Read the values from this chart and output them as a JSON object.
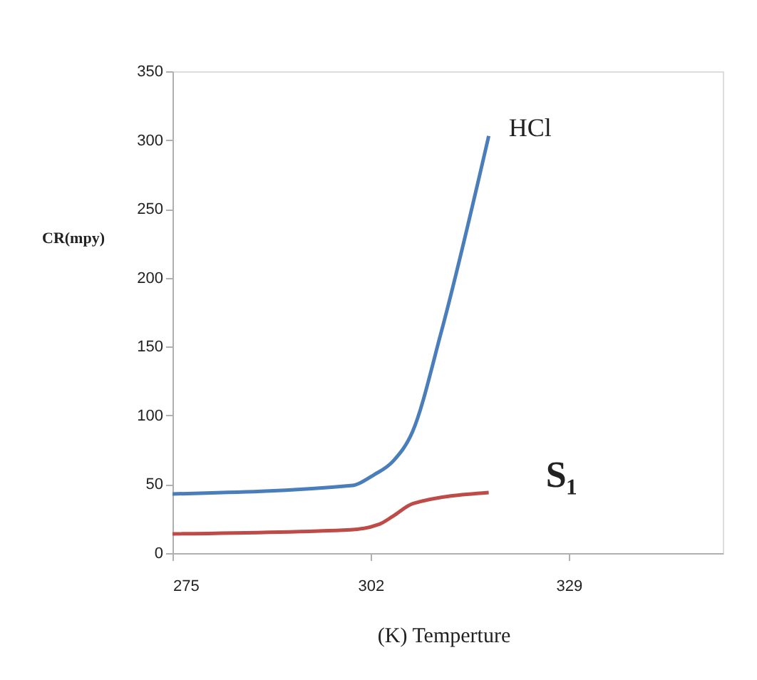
{
  "chart_data": {
    "type": "line",
    "xlabel": "(K) Temperture",
    "ylabel": "CR(mpy)",
    "xlim": [
      275,
      350
    ],
    "xticks": [
      275,
      302,
      329
    ],
    "ylim": [
      0,
      350
    ],
    "yticks": [
      0,
      50,
      100,
      150,
      200,
      250,
      300,
      350
    ],
    "grid": false,
    "marker": "none",
    "line_style": "solid",
    "series": [
      {
        "name": "HCl",
        "color": "#4a7ebb",
        "x": [
          275,
          299.3,
          302.5,
          305.1,
          307.7,
          311.6,
          318.1
        ],
        "values": [
          43,
          49,
          57,
          67,
          88,
          160,
          303
        ]
      },
      {
        "name": "S₁",
        "color": "#be4b48",
        "x": [
          275,
          299.3,
          303.2,
          305.1,
          307.8,
          318.1
        ],
        "values": [
          14,
          17,
          21,
          27,
          36,
          44
        ]
      }
    ]
  }
}
